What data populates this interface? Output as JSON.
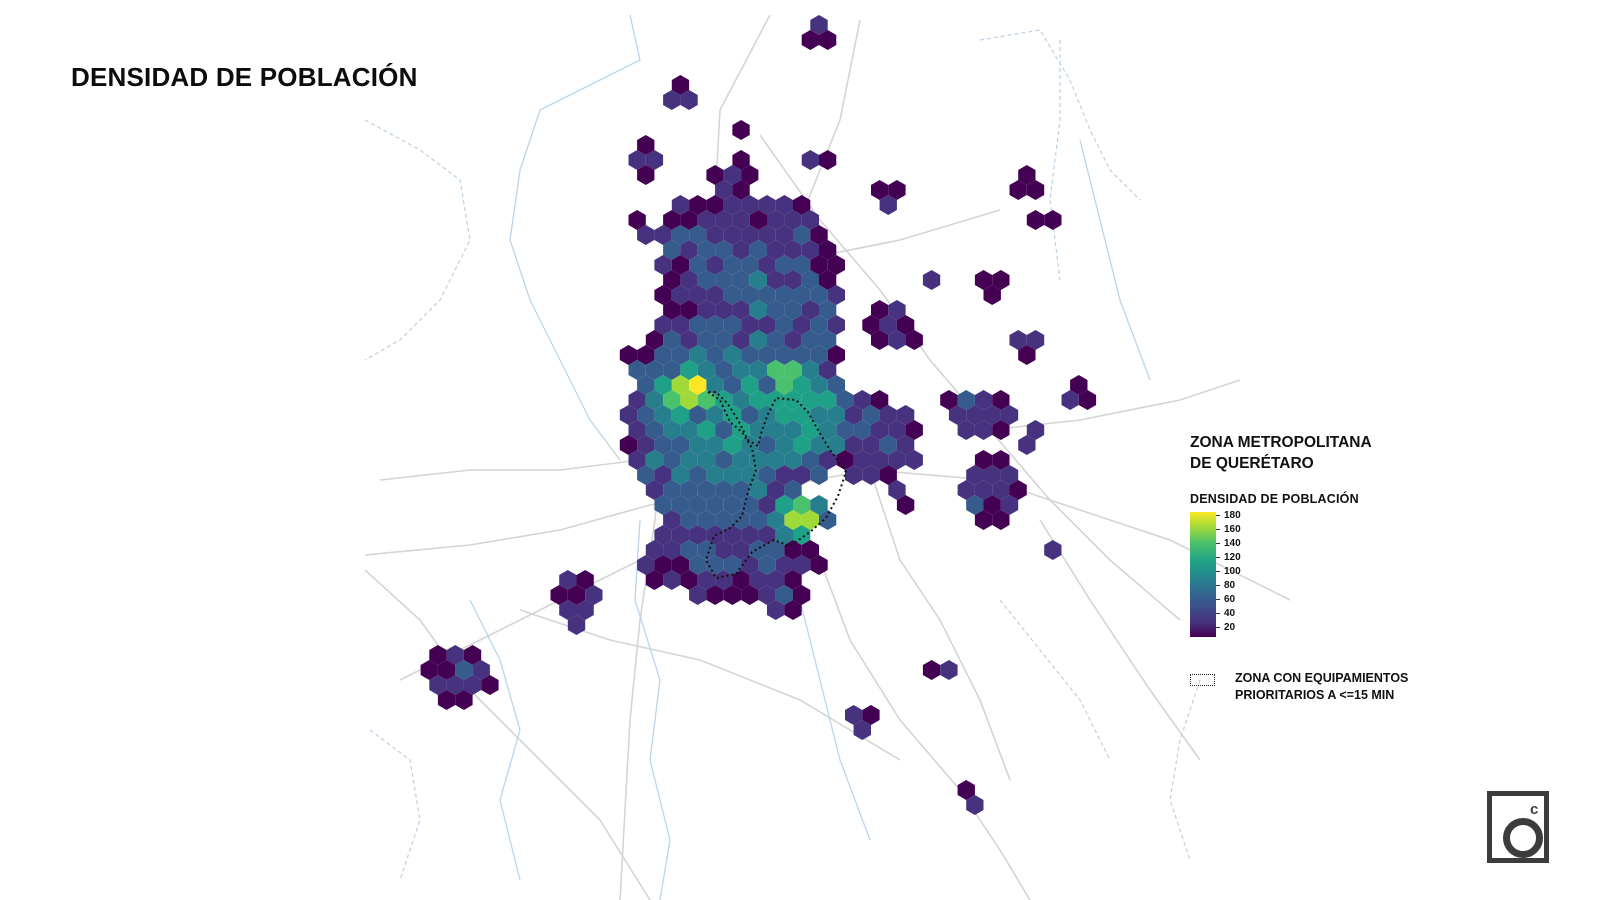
{
  "title": "DENSIDAD DE POBLACIÓN",
  "legend": {
    "title_line1": "ZONA METROPOLITANA",
    "title_line2": "DE QUERÉTARO",
    "scale_title": "DENSIDAD DE POBLACIÓN",
    "ticks": [
      "180",
      "160",
      "140",
      "120",
      "100",
      "80",
      "60",
      "40",
      "20"
    ],
    "zone_label_line1": "ZONA CON EQUIPAMIENTOS",
    "zone_label_line2": "PRIORITARIOS A <=15 MIN"
  },
  "colors": {
    "scale": [
      "#440154",
      "#46327e",
      "#365c8d",
      "#277f8e",
      "#1fa187",
      "#4ac16d",
      "#a0da39",
      "#fde725"
    ],
    "roads": "#d6d6d6",
    "rivers": "#b9d3e8",
    "boundary": "#b7cde0"
  },
  "icons": {
    "logo": "oc-logo-icon"
  }
}
